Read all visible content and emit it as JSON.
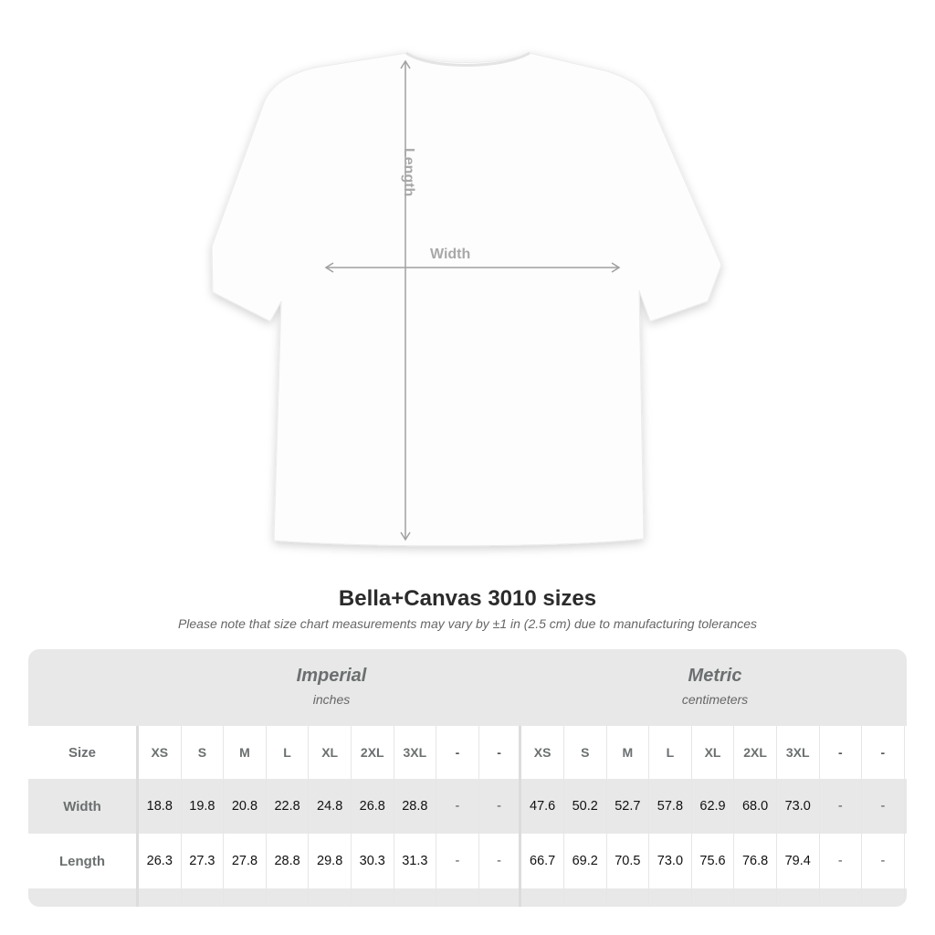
{
  "diagram": {
    "length_label": "Length",
    "width_label": "Width"
  },
  "title": "Bella+Canvas 3010 sizes",
  "subtitle": "Please note that size chart measurements may vary by ±1 in (2.5 cm) due to manufacturing tolerances",
  "imperial": {
    "label": "Imperial",
    "unit": "inches"
  },
  "metric": {
    "label": "Metric",
    "unit": "centimeters"
  },
  "rows": [
    {
      "label": "Size",
      "imperial": [
        "XS",
        "S",
        "M",
        "L",
        "XL",
        "2XL",
        "3XL",
        "-",
        "-"
      ],
      "metric": [
        "XS",
        "S",
        "M",
        "L",
        "XL",
        "2XL",
        "3XL",
        "-",
        "-"
      ]
    },
    {
      "label": "Width",
      "imperial": [
        "18.8",
        "19.8",
        "20.8",
        "22.8",
        "24.8",
        "26.8",
        "28.8",
        "-",
        "-"
      ],
      "metric": [
        "47.6",
        "50.2",
        "52.7",
        "57.8",
        "62.9",
        "68.0",
        "73.0",
        "-",
        "-"
      ]
    },
    {
      "label": "Length",
      "imperial": [
        "26.3",
        "27.3",
        "27.8",
        "28.8",
        "29.8",
        "30.3",
        "31.3",
        "-",
        "-"
      ],
      "metric": [
        "66.7",
        "69.2",
        "70.5",
        "73.0",
        "75.6",
        "76.8",
        "79.4",
        "-",
        "-"
      ]
    }
  ]
}
